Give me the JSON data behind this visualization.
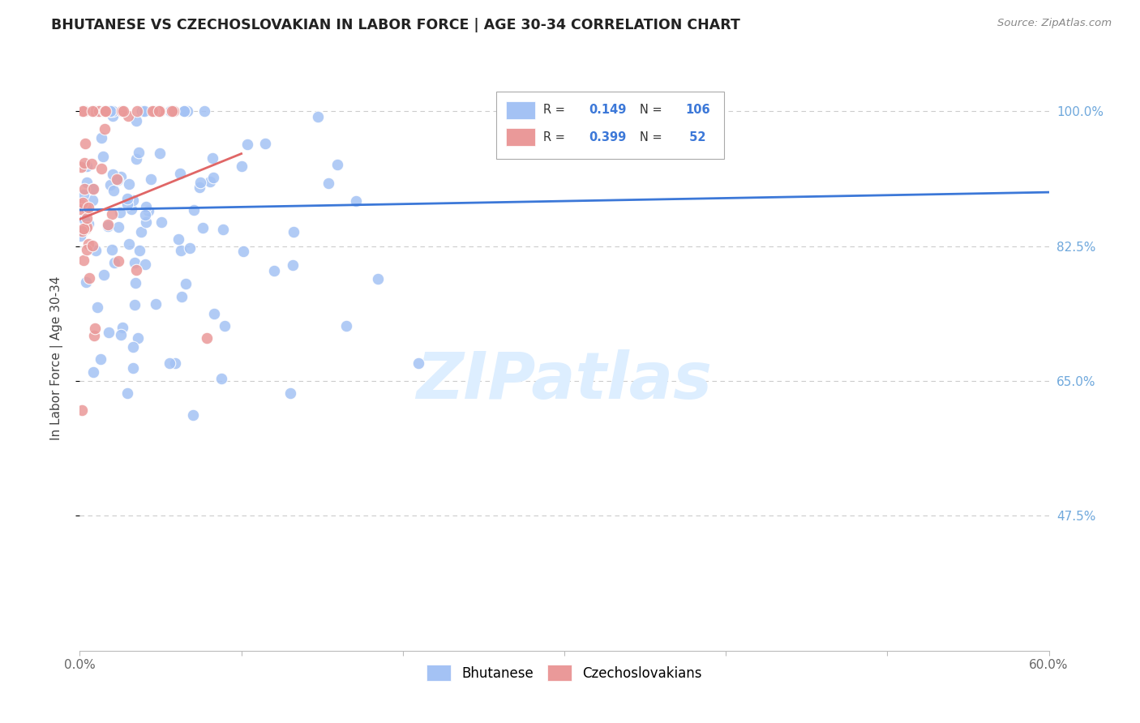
{
  "title": "BHUTANESE VS CZECHOSLOVAKIAN IN LABOR FORCE | AGE 30-34 CORRELATION CHART",
  "source": "Source: ZipAtlas.com",
  "ylabel": "In Labor Force | Age 30-34",
  "ytick_labels": [
    "100.0%",
    "82.5%",
    "65.0%",
    "47.5%"
  ],
  "ytick_values": [
    1.0,
    0.825,
    0.65,
    0.475
  ],
  "xmin": 0.0,
  "xmax": 0.6,
  "ymin": 0.3,
  "ymax": 1.06,
  "R_blue": 0.149,
  "N_blue": 106,
  "R_pink": 0.399,
  "N_pink": 52,
  "legend_labels": [
    "Bhutanese",
    "Czechoslovakians"
  ],
  "blue_color": "#a4c2f4",
  "pink_color": "#ea9999",
  "blue_line_color": "#3c78d8",
  "pink_line_color": "#e06666",
  "watermark_color": "#ddeeff",
  "grid_color": "#cccccc",
  "right_tick_color": "#6fa8dc",
  "title_color": "#222222",
  "source_color": "#888888",
  "blue_line_y0": 0.872,
  "blue_line_y1": 0.895,
  "pink_line_x0": 0.0,
  "pink_line_x1": 0.1,
  "pink_line_y0": 0.86,
  "pink_line_y1": 0.945
}
